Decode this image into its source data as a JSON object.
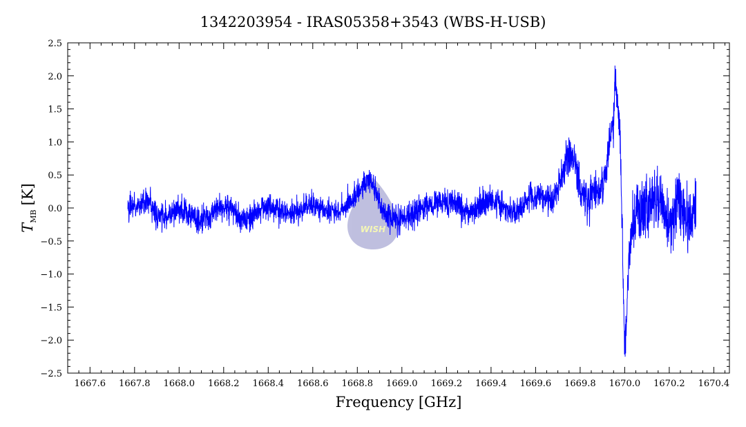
{
  "chart_data": {
    "type": "line",
    "title": "1342203954 - IRAS05358+3543 (WBS-H-USB)",
    "xlabel": "Frequency [GHz]",
    "ylabel_main": "T",
    "ylabel_sub": "MB",
    "ylabel_unit": "[K]",
    "xlim": [
      1667.5,
      1670.47
    ],
    "ylim": [
      -2.5,
      2.5
    ],
    "x_ticks": [
      1667.6,
      1667.8,
      1668.0,
      1668.2,
      1668.4,
      1668.6,
      1668.8,
      1669.0,
      1669.2,
      1669.4,
      1669.6,
      1669.8,
      1670.0,
      1670.2,
      1670.4
    ],
    "x_tick_labels": [
      "1667.6",
      "1667.8",
      "1668.0",
      "1668.2",
      "1668.4",
      "1668.6",
      "1668.8",
      "1669.0",
      "1669.2",
      "1669.4",
      "1669.6",
      "1669.8",
      "1670.0",
      "1670.2",
      "1670.4"
    ],
    "y_ticks": [
      -2.5,
      -2.0,
      -1.5,
      -1.0,
      -0.5,
      0.0,
      0.5,
      1.0,
      1.5,
      2.0,
      2.5
    ],
    "y_tick_labels": [
      "−2.5",
      "−2.0",
      "−1.5",
      "−1.0",
      "−0.5",
      "0.0",
      "0.5",
      "1.0",
      "1.5",
      "2.0",
      "2.5"
    ],
    "series": [
      {
        "color": "#0000ff",
        "x_range": [
          1667.77,
          1670.32
        ],
        "points": [
          [
            1667.77,
            -0.05
          ],
          [
            1667.79,
            0.35
          ],
          [
            1667.8,
            -0.3
          ],
          [
            1667.85,
            0.25
          ],
          [
            1667.9,
            -0.2
          ],
          [
            1668.0,
            0.0
          ],
          [
            1668.1,
            -0.2
          ],
          [
            1668.2,
            0.05
          ],
          [
            1668.3,
            -0.2
          ],
          [
            1668.4,
            0.05
          ],
          [
            1668.5,
            -0.1
          ],
          [
            1668.6,
            0.05
          ],
          [
            1668.7,
            -0.1
          ],
          [
            1668.8,
            0.2
          ],
          [
            1668.87,
            0.6
          ],
          [
            1668.9,
            -0.1
          ],
          [
            1669.0,
            -0.2
          ],
          [
            1669.1,
            0.05
          ],
          [
            1669.2,
            0.1
          ],
          [
            1669.3,
            -0.1
          ],
          [
            1669.4,
            0.15
          ],
          [
            1669.5,
            -0.1
          ],
          [
            1669.6,
            0.2
          ],
          [
            1669.7,
            0.1
          ],
          [
            1669.76,
            1.2
          ],
          [
            1669.78,
            0.6
          ],
          [
            1669.82,
            -0.1
          ],
          [
            1669.85,
            0.3
          ],
          [
            1669.9,
            0.2
          ],
          [
            1669.93,
            0.8
          ],
          [
            1669.96,
            1.9
          ],
          [
            1669.98,
            1.0
          ],
          [
            1669.99,
            -0.8
          ],
          [
            1670.0,
            -2.15
          ],
          [
            1670.01,
            -1.6
          ],
          [
            1670.03,
            0.3
          ],
          [
            1670.08,
            -0.2
          ],
          [
            1670.15,
            0.4
          ],
          [
            1670.2,
            -0.5
          ],
          [
            1670.25,
            0.5
          ],
          [
            1670.3,
            -0.9
          ],
          [
            1670.32,
            0.6
          ]
        ]
      }
    ]
  },
  "watermark": {
    "text": "WISH",
    "color": "#8c8cc6"
  }
}
